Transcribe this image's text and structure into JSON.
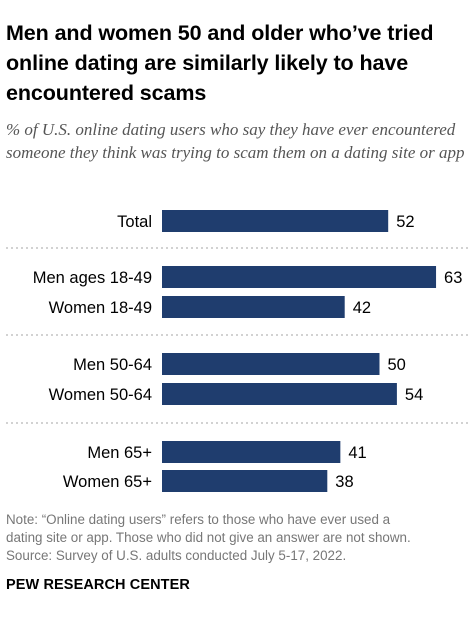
{
  "title": "Men and women 50 and older who’ve tried online dating are similarly likely to have encountered scams",
  "subtitle": "% of U.S. online dating users who say they have ever encountered someone they think was trying to scam them on a dating site or app",
  "notes": {
    "note_line_1": "Note: “Online dating users” refers to those who have ever used a",
    "note_line_2": "dating site or app. Those who did not give an answer are not shown.",
    "source": "Source: Survey of U.S. adults conducted July 5-17, 2022."
  },
  "logo": "PEW RESEARCH CENTER",
  "colors": {
    "bar": "#1f3d6e",
    "divider": "#a6a6a6",
    "subtitle": "#555555",
    "notes": "#777777"
  },
  "chart_data": {
    "type": "bar",
    "orientation": "horizontal",
    "categories": [
      "Total",
      "Men ages 18-49",
      "Women 18-49",
      "Men 50-64",
      "Women 50-64",
      "Men 65+",
      "Women 65+"
    ],
    "values": [
      52,
      63,
      42,
      50,
      54,
      41,
      38
    ],
    "groups": [
      [
        0
      ],
      [
        1,
        2
      ],
      [
        3,
        4
      ],
      [
        5,
        6
      ]
    ],
    "value_labels_shown": true,
    "legend": "none",
    "grid": false
  }
}
